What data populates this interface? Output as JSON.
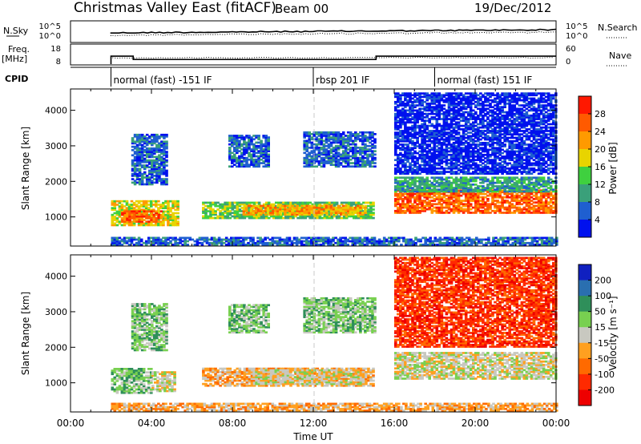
{
  "header": {
    "title": "Christmas Valley East (fitACF)",
    "beam": "Beam 00",
    "date": "19/Dec/2012"
  },
  "status_panels": {
    "nsky": {
      "label": "N.Sky",
      "ticks": [
        "10^5",
        "10^0"
      ],
      "right_label": "N.Search"
    },
    "freq": {
      "label_line1": "Freq.",
      "label_line2": "[MHz]",
      "ticks_left": [
        "18",
        "8"
      ],
      "ticks_right": [
        "60",
        "0"
      ],
      "right_label": "Nave"
    },
    "cpid": {
      "label": "CPID",
      "segments": [
        {
          "label": "normal (fast) -151 IF",
          "start": 2.0
        },
        {
          "label": "rbsp 201 IF",
          "start": 12.0
        },
        {
          "label": "normal (fast) 151 IF",
          "start": 18.0
        }
      ]
    },
    "freq_step": [
      {
        "x": 0.0,
        "freq": null
      },
      {
        "x": 2.0,
        "freq": 14.2
      },
      {
        "x": 3.1,
        "freq": 11.6
      },
      {
        "x": 15.1,
        "freq": 14.2
      },
      {
        "x": 24.0,
        "freq": 14.2
      }
    ]
  },
  "chart_data": [
    {
      "type": "heatmap",
      "name": "power-panel",
      "ylabel": "Slant Range [km]",
      "xlabel": "",
      "x_ticks": [
        "00:00",
        "04:00",
        "08:00",
        "12:00",
        "16:00",
        "20:00",
        "00:00"
      ],
      "y_ticks": [
        "1000",
        "2000",
        "3000",
        "4000"
      ],
      "xlim": [
        0,
        24
      ],
      "ylim": [
        180,
        4600
      ],
      "colorbar": {
        "title": "Power [dB]",
        "ticks": [
          "4",
          "8",
          "12",
          "16",
          "20",
          "24",
          "28"
        ],
        "colors": [
          "#0011ee",
          "#1f5fd0",
          "#3aa07a",
          "#3fd03f",
          "#e8d400",
          "#ff9a00",
          "#ff5a00",
          "#ff1800"
        ]
      },
      "regions": [
        {
          "t0": 2.0,
          "t1": 5.3,
          "r0": 750,
          "r1": 1450,
          "level": 4
        },
        {
          "t0": 2.5,
          "t1": 4.5,
          "r0": 850,
          "r1": 1150,
          "level": 6
        },
        {
          "t0": 3.0,
          "t1": 4.8,
          "r0": 1900,
          "r1": 3300,
          "level": 1
        },
        {
          "t0": 6.5,
          "t1": 15.0,
          "r0": 950,
          "r1": 1400,
          "level": 3
        },
        {
          "t0": 8.5,
          "t1": 14.5,
          "r0": 1050,
          "r1": 1300,
          "level": 5
        },
        {
          "t0": 7.8,
          "t1": 9.8,
          "r0": 2400,
          "r1": 3300,
          "level": 1
        },
        {
          "t0": 11.5,
          "t1": 15.0,
          "r0": 2400,
          "r1": 3400,
          "level": 1
        },
        {
          "t0": 16.0,
          "t1": 24.0,
          "r0": 1100,
          "r1": 1750,
          "level": 6
        },
        {
          "t0": 16.0,
          "t1": 24.0,
          "r0": 1700,
          "r1": 2100,
          "level": 2
        },
        {
          "t0": 16.0,
          "t1": 24.0,
          "r0": 2200,
          "r1": 4500,
          "level": 0
        },
        {
          "t0": 2.0,
          "t1": 24.0,
          "r0": 200,
          "r1": 420,
          "level": 1
        }
      ]
    },
    {
      "type": "heatmap",
      "name": "velocity-panel",
      "ylabel": "Slant Range [km]",
      "xlabel": "Time UT",
      "x_ticks": [
        "00:00",
        "04:00",
        "08:00",
        "12:00",
        "16:00",
        "20:00",
        "00:00"
      ],
      "y_ticks": [
        "1000",
        "2000",
        "3000",
        "4000"
      ],
      "xlim": [
        0,
        24
      ],
      "ylim": [
        180,
        4600
      ],
      "colorbar": {
        "title": "Velocity [m s⁻¹]",
        "ticks": [
          "200",
          "100",
          "50",
          "15",
          "-15",
          "-50",
          "-100",
          "-200"
        ],
        "colors": [
          "#1020c0",
          "#2a6fb0",
          "#2f8f5a",
          "#78d050",
          "#c8c8c0",
          "#ffa020",
          "#ff6a00",
          "#ff2a00",
          "#ee0000"
        ]
      },
      "regions": [
        {
          "t0": 2.0,
          "t1": 4.0,
          "r0": 700,
          "r1": 1400,
          "level": 3
        },
        {
          "t0": 4.0,
          "t1": 5.2,
          "r0": 750,
          "r1": 1300,
          "level": 4
        },
        {
          "t0": 6.5,
          "t1": 15.0,
          "r0": 900,
          "r1": 1400,
          "level": 5
        },
        {
          "t0": 9.0,
          "t1": 14.5,
          "r0": 950,
          "r1": 1350,
          "level": 4
        },
        {
          "t0": 3.0,
          "t1": 4.8,
          "r0": 1900,
          "r1": 3200,
          "level": 3
        },
        {
          "t0": 7.8,
          "t1": 9.8,
          "r0": 2400,
          "r1": 3200,
          "level": 3
        },
        {
          "t0": 11.5,
          "t1": 15.0,
          "r0": 2400,
          "r1": 3400,
          "level": 3
        },
        {
          "t0": 16.0,
          "t1": 24.0,
          "r0": 1100,
          "r1": 1850,
          "level": 4
        },
        {
          "t0": 16.0,
          "t1": 24.0,
          "r0": 2000,
          "r1": 4500,
          "level": 7
        },
        {
          "t0": 2.0,
          "t1": 24.0,
          "r0": 200,
          "r1": 400,
          "level": 5
        }
      ]
    }
  ]
}
